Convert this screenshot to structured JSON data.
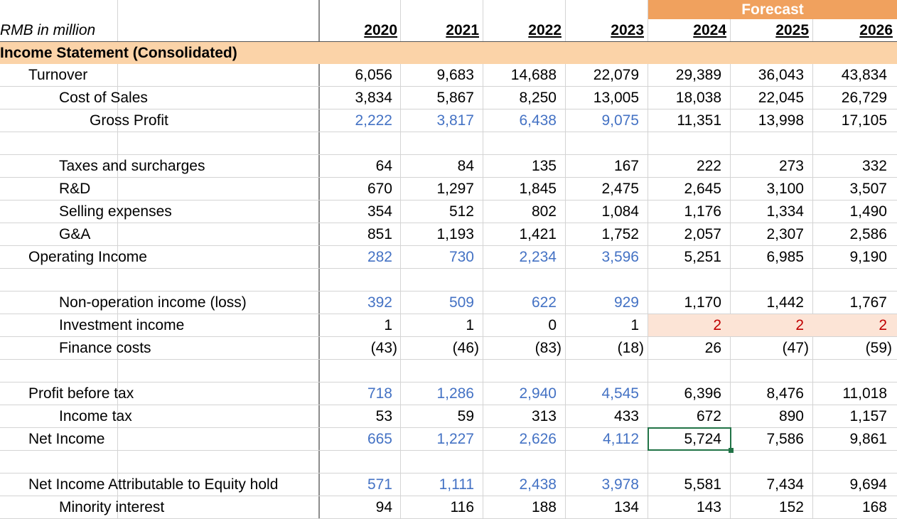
{
  "forecast_label": "Forecast",
  "unit_label": "RMB in million",
  "section_title": "Income Statement (Consolidated)",
  "years": [
    "2020",
    "2021",
    "2022",
    "2023",
    "2024",
    "2025",
    "2026"
  ],
  "rows": [
    {
      "label": "Turnover",
      "values": [
        "6,056",
        "9,683",
        "14,688",
        "22,079",
        "29,389",
        "36,043",
        "43,834"
      ]
    },
    {
      "label": "Cost of Sales",
      "values": [
        "3,834",
        "5,867",
        "8,250",
        "13,005",
        "18,038",
        "22,045",
        "26,729"
      ]
    },
    {
      "label": "Gross Profit",
      "values": [
        "2,222",
        "3,817",
        "6,438",
        "9,075",
        "11,351",
        "13,998",
        "17,105"
      ]
    },
    {
      "label": "Taxes and surcharges",
      "values": [
        "64",
        "84",
        "135",
        "167",
        "222",
        "273",
        "332"
      ]
    },
    {
      "label": "R&D",
      "values": [
        "670",
        "1,297",
        "1,845",
        "2,475",
        "2,645",
        "3,100",
        "3,507"
      ]
    },
    {
      "label": "Selling expenses",
      "values": [
        "354",
        "512",
        "802",
        "1,084",
        "1,176",
        "1,334",
        "1,490"
      ]
    },
    {
      "label": "G&A",
      "values": [
        "851",
        "1,193",
        "1,421",
        "1,752",
        "2,057",
        "2,307",
        "2,586"
      ]
    },
    {
      "label": "Operating Income",
      "values": [
        "282",
        "730",
        "2,234",
        "3,596",
        "5,251",
        "6,985",
        "9,190"
      ]
    },
    {
      "label": "Non-operation income (loss)",
      "values": [
        "392",
        "509",
        "622",
        "929",
        "1,170",
        "1,442",
        "1,767"
      ]
    },
    {
      "label": "Investment income",
      "values": [
        "1",
        "1",
        "0",
        "1",
        "2",
        "2",
        "2"
      ]
    },
    {
      "label": "Finance costs",
      "values": [
        "(43)",
        "(46)",
        "(83)",
        "(18)",
        "26",
        "(47)",
        "(59)"
      ]
    },
    {
      "label": "Profit before tax",
      "values": [
        "718",
        "1,286",
        "2,940",
        "4,545",
        "6,396",
        "8,476",
        "11,018"
      ]
    },
    {
      "label": "Income tax",
      "values": [
        "53",
        "59",
        "313",
        "433",
        "672",
        "890",
        "1,157"
      ]
    },
    {
      "label": "Net Income",
      "values": [
        "665",
        "1,227",
        "2,626",
        "4,112",
        "5,724",
        "7,586",
        "9,861"
      ]
    },
    {
      "label": "Net Income Attributable to Equity hold",
      "values": [
        "571",
        "1,111",
        "2,438",
        "3,978",
        "5,581",
        "7,434",
        "9,694"
      ]
    },
    {
      "label": "Minority interest",
      "values": [
        "94",
        "116",
        "188",
        "134",
        "143",
        "152",
        "168"
      ]
    }
  ],
  "colors": {
    "formula_blue": "#4472c4",
    "input_red": "#c00000",
    "forecast_header": "#f0a15e",
    "section_fill": "#fbd3a8",
    "highlight_fill": "#fce4d6",
    "selection_green": "#217346"
  },
  "selected_cell": {
    "row": "Net Income",
    "year": "2024",
    "value": "5,724"
  }
}
